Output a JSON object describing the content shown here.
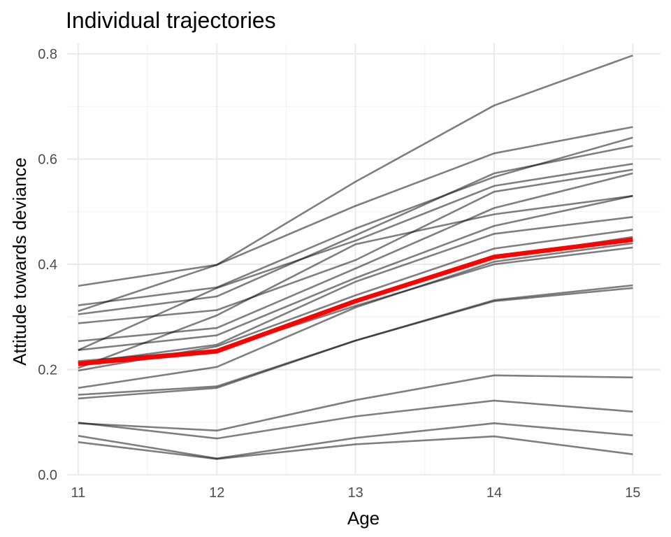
{
  "chart_data": {
    "type": "line",
    "title": "Individual trajectories",
    "xlabel": "Age",
    "ylabel": "Attitude towards deviance",
    "x": [
      11,
      12,
      13,
      14,
      15
    ],
    "xlim": [
      10.92,
      15.2
    ],
    "ylim": [
      0,
      0.82
    ],
    "xticks": [
      "11",
      "12",
      "13",
      "14",
      "15"
    ],
    "yticks": [
      "0.0",
      "0.2",
      "0.4",
      "0.6",
      "0.8"
    ],
    "ytick_values": [
      0,
      0.2,
      0.4,
      0.6,
      0.8
    ],
    "grid": true,
    "legend": "none",
    "colors": {
      "trajectory": "#000000",
      "mean": "#ff0000"
    },
    "series": [
      {
        "values": [
          0.359,
          0.399,
          0.557,
          0.702,
          0.797
        ]
      },
      {
        "values": [
          0.311,
          0.399,
          0.511,
          0.611,
          0.661
        ]
      },
      {
        "values": [
          0.322,
          0.356,
          0.468,
          0.566,
          0.641
        ]
      },
      {
        "values": [
          0.305,
          0.339,
          0.455,
          0.573,
          0.625
        ]
      },
      {
        "values": [
          0.237,
          0.355,
          0.445,
          0.549,
          0.591
        ]
      },
      {
        "values": [
          0.288,
          0.313,
          0.408,
          0.538,
          0.58
        ]
      },
      {
        "values": [
          0.254,
          0.279,
          0.392,
          0.507,
          0.573
        ]
      },
      {
        "values": [
          0.203,
          0.303,
          0.438,
          0.495,
          0.53
        ]
      },
      {
        "values": [
          0.237,
          0.265,
          0.374,
          0.473,
          0.53
        ]
      },
      {
        "values": [
          0.212,
          0.247,
          0.367,
          0.458,
          0.49
        ]
      },
      {
        "values": [
          0.198,
          0.244,
          0.341,
          0.43,
          0.466
        ]
      },
      {
        "values": [
          0.208,
          0.232,
          0.329,
          0.412,
          0.452
        ]
      },
      {
        "values": [
          0.216,
          0.237,
          0.321,
          0.4,
          0.432
        ]
      },
      {
        "values": [
          0.165,
          0.205,
          0.318,
          0.405,
          0.44
        ]
      },
      {
        "values": [
          0.152,
          0.168,
          0.255,
          0.332,
          0.36
        ]
      },
      {
        "values": [
          0.145,
          0.165,
          0.255,
          0.33,
          0.355
        ]
      },
      {
        "values": [
          0.098,
          0.084,
          0.142,
          0.189,
          0.185
        ]
      },
      {
        "values": [
          0.099,
          0.069,
          0.111,
          0.141,
          0.12
        ]
      },
      {
        "values": [
          0.074,
          0.031,
          0.07,
          0.098,
          0.075
        ]
      },
      {
        "values": [
          0.062,
          0.03,
          0.058,
          0.073,
          0.039
        ]
      }
    ],
    "mean_series": {
      "values": [
        0.211,
        0.235,
        0.33,
        0.414,
        0.447
      ]
    }
  }
}
